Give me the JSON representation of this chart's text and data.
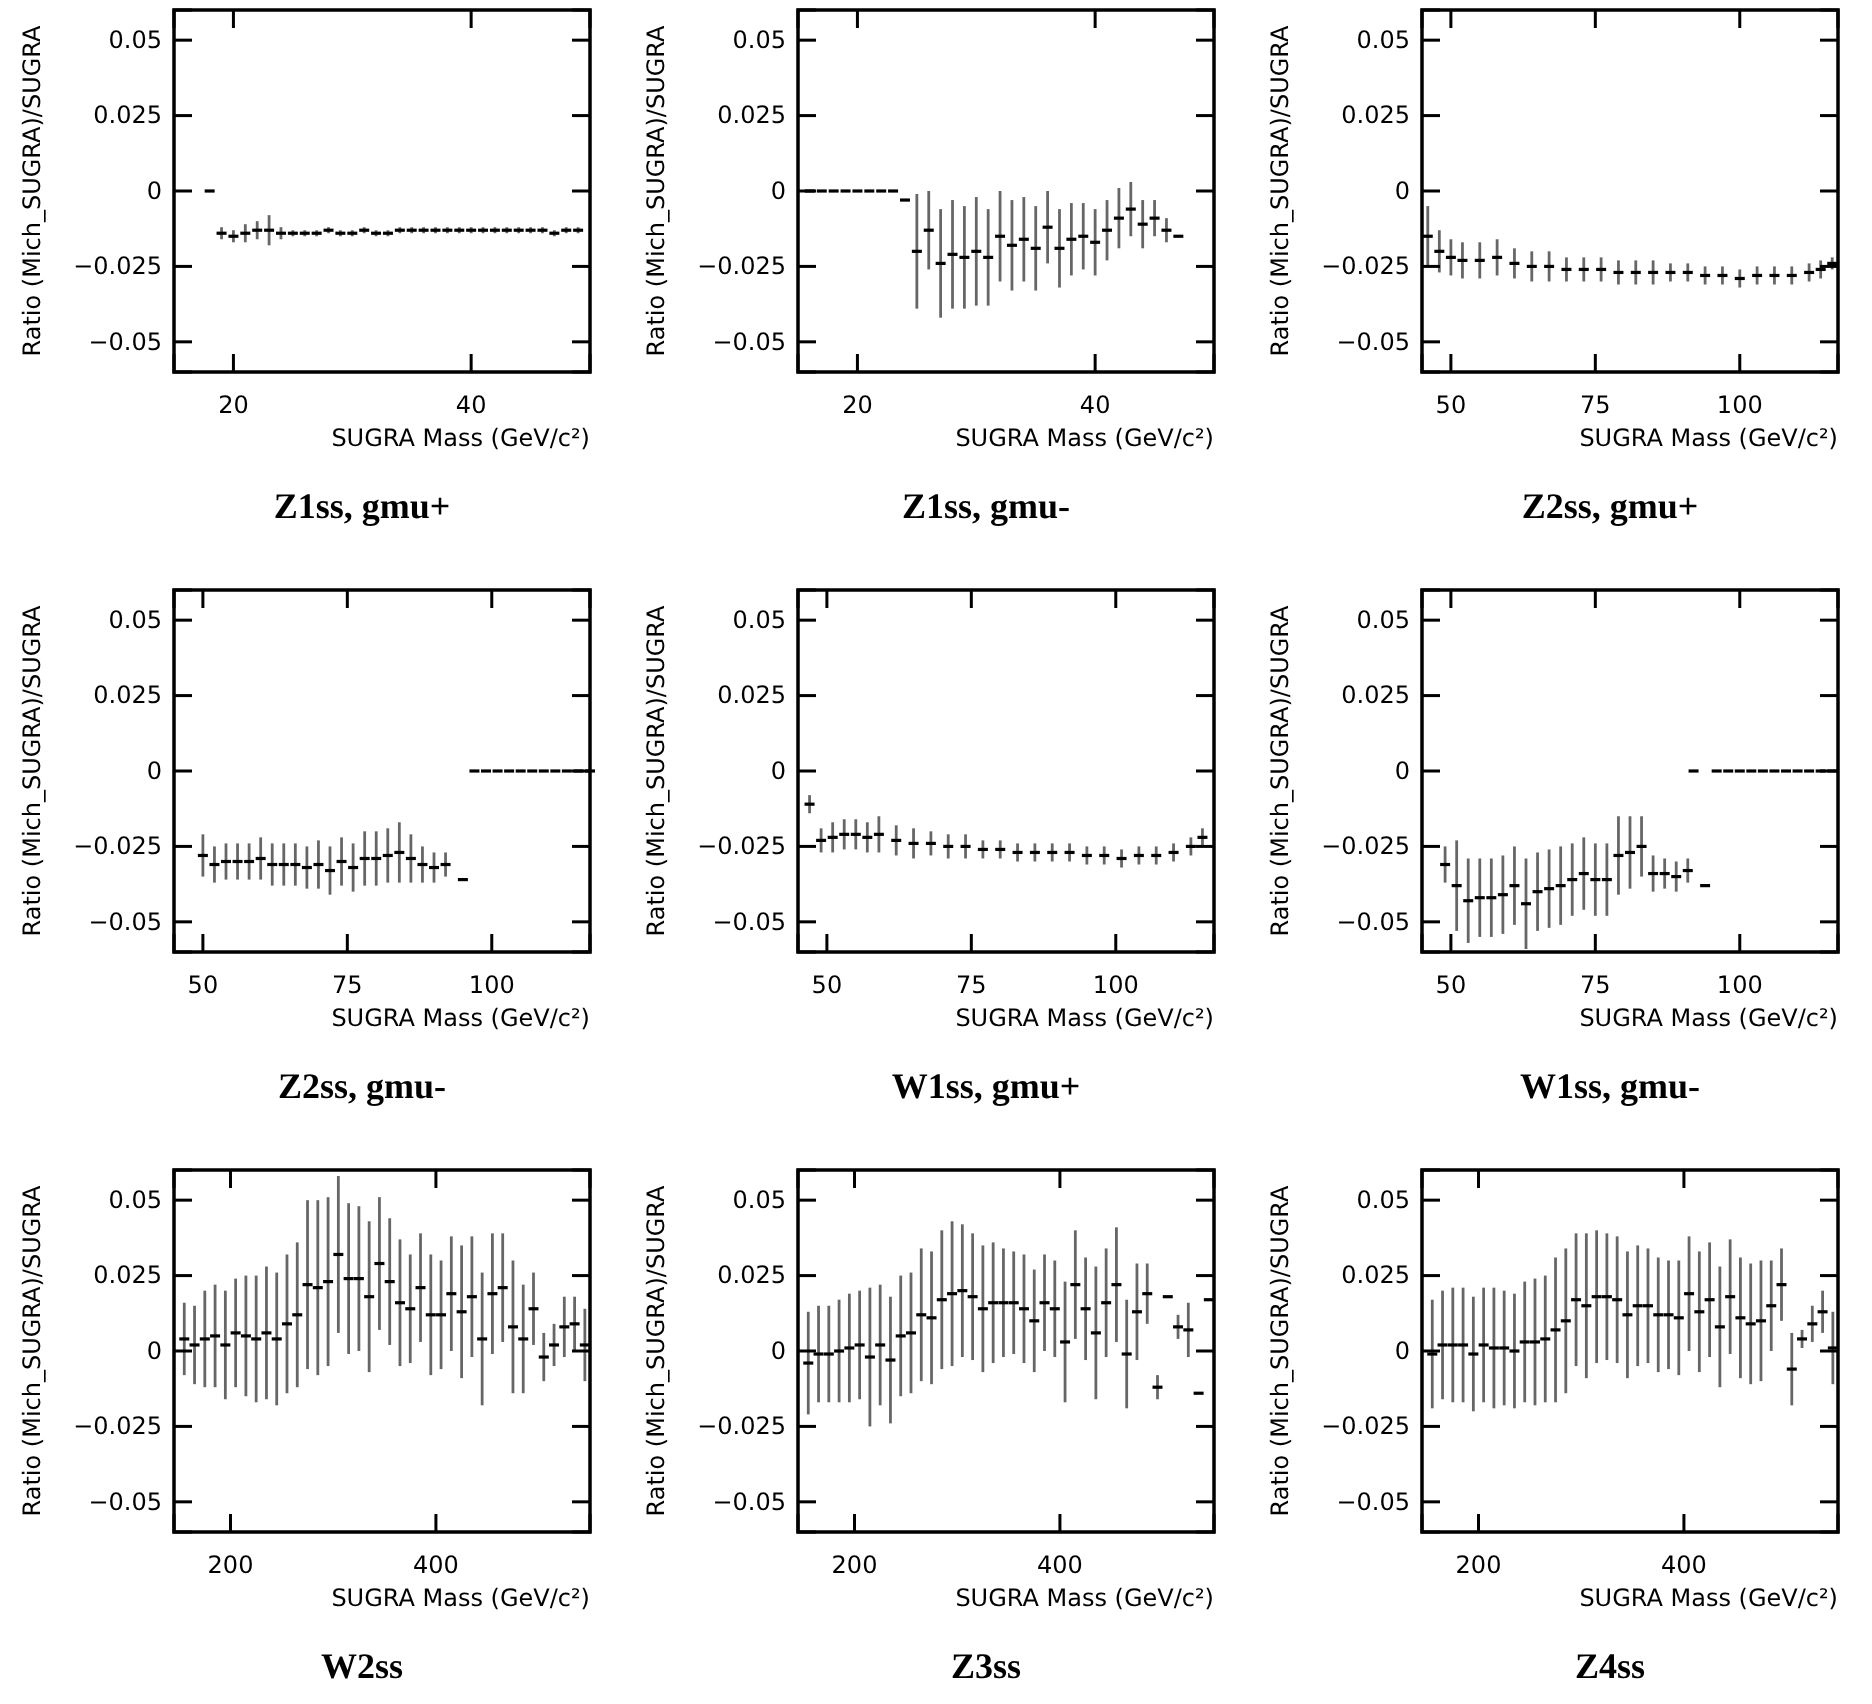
{
  "chart_data": [
    {
      "type": "scatter",
      "title": "Z1ss, gmu+",
      "xlabel": "SUGRA Mass (GeV/c²)",
      "ylabel": "Ratio (Mich_SUGRA)/SUGRA",
      "xlim": [
        15,
        50
      ],
      "xticks": [
        20,
        40
      ],
      "ylim": [
        -0.06,
        0.06
      ],
      "yticks": [
        -0.05,
        -0.025,
        0,
        0.025,
        0.05
      ],
      "series": [
        {
          "color": "#000000",
          "x": [
            18,
            19,
            20,
            21,
            22,
            23,
            24,
            25,
            26,
            27,
            28,
            29,
            30,
            31,
            32,
            33,
            34,
            35,
            36,
            37,
            38,
            39,
            40,
            41,
            42,
            43,
            44,
            45,
            46,
            47,
            48,
            49
          ],
          "values": [
            0,
            -0.014,
            -0.015,
            -0.014,
            -0.013,
            -0.013,
            -0.014,
            -0.014,
            -0.014,
            -0.014,
            -0.013,
            -0.014,
            -0.014,
            -0.013,
            -0.014,
            -0.014,
            -0.013,
            -0.013,
            -0.013,
            -0.013,
            -0.013,
            -0.013,
            -0.013,
            -0.013,
            -0.013,
            -0.013,
            -0.013,
            -0.013,
            -0.013,
            -0.014,
            -0.013,
            -0.013
          ],
          "errors": [
            null,
            0.002,
            0.002,
            0.003,
            0.003,
            0.005,
            0.002,
            0.001,
            0.001,
            0.001,
            0.001,
            0.001,
            0.001,
            0.001,
            0.001,
            0.001,
            0.001,
            0.001,
            0.001,
            0.001,
            0.001,
            0.001,
            0.001,
            0.001,
            0.001,
            0.001,
            0.001,
            0.001,
            0.001,
            0.001,
            0.001,
            0.001
          ]
        }
      ]
    },
    {
      "type": "scatter",
      "title": "Z1ss, gmu-",
      "xlabel": "SUGRA Mass (GeV/c²)",
      "ylabel": "Ratio (Mich_SUGRA)/SUGRA",
      "xlim": [
        15,
        50
      ],
      "xticks": [
        20,
        40
      ],
      "ylim": [
        -0.06,
        0.06
      ],
      "yticks": [
        -0.05,
        -0.025,
        0,
        0.025,
        0.05
      ],
      "series": [
        {
          "color": "#000000",
          "x": [
            16,
            17,
            18,
            19,
            20,
            21,
            22,
            23,
            24,
            25,
            26,
            27,
            28,
            29,
            30,
            31,
            32,
            33,
            34,
            35,
            36,
            37,
            38,
            39,
            40,
            41,
            42,
            43,
            44,
            45,
            46,
            47
          ],
          "values": [
            0,
            0,
            0,
            0,
            0,
            0,
            0,
            0,
            -0.003,
            -0.02,
            -0.013,
            -0.024,
            -0.021,
            -0.022,
            -0.02,
            -0.022,
            -0.015,
            -0.018,
            -0.016,
            -0.019,
            -0.012,
            -0.019,
            -0.016,
            -0.015,
            -0.017,
            -0.013,
            -0.009,
            -0.006,
            -0.011,
            -0.009,
            -0.013,
            -0.015
          ],
          "errors": [
            null,
            null,
            null,
            null,
            null,
            null,
            null,
            null,
            null,
            0.019,
            0.013,
            0.018,
            0.018,
            0.017,
            0.018,
            0.016,
            0.015,
            0.015,
            0.014,
            0.014,
            0.012,
            0.013,
            0.012,
            0.011,
            0.011,
            0.01,
            0.01,
            0.009,
            0.008,
            0.006,
            0.004,
            null
          ]
        }
      ]
    },
    {
      "type": "scatter",
      "title": "Z2ss, gmu+",
      "xlabel": "SUGRA Mass (GeV/c²)",
      "ylabel": "Ratio (Mich_SUGRA)/SUGRA",
      "xlim": [
        45,
        117
      ],
      "xticks": [
        50,
        75,
        100
      ],
      "ylim": [
        -0.06,
        0.06
      ],
      "yticks": [
        -0.05,
        -0.025,
        0,
        0.025,
        0.05
      ],
      "series": [
        {
          "color": "#000000",
          "x": [
            46,
            48,
            50,
            52,
            55,
            58,
            61,
            64,
            67,
            70,
            73,
            76,
            79,
            82,
            85,
            88,
            91,
            94,
            97,
            100,
            103,
            106,
            109,
            112,
            114,
            116
          ],
          "values": [
            -0.015,
            -0.02,
            -0.022,
            -0.023,
            -0.023,
            -0.022,
            -0.024,
            -0.025,
            -0.025,
            -0.026,
            -0.026,
            -0.026,
            -0.027,
            -0.027,
            -0.027,
            -0.027,
            -0.027,
            -0.028,
            -0.028,
            -0.029,
            -0.028,
            -0.028,
            -0.028,
            -0.027,
            -0.026,
            -0.024
          ],
          "errors": [
            0.01,
            0.007,
            0.006,
            0.006,
            0.006,
            0.006,
            0.005,
            0.005,
            0.005,
            0.004,
            0.004,
            0.004,
            0.004,
            0.004,
            0.004,
            0.003,
            0.003,
            0.003,
            0.003,
            0.003,
            0.003,
            0.003,
            0.003,
            0.003,
            0.003,
            0.002
          ]
        }
      ]
    },
    {
      "type": "scatter",
      "title": "Z2ss, gmu-",
      "xlabel": "SUGRA Mass (GeV/c²)",
      "ylabel": "Ratio (Mich_SUGRA)/SUGRA",
      "xlim": [
        45,
        117
      ],
      "xticks": [
        50,
        75,
        100
      ],
      "ylim": [
        -0.06,
        0.06
      ],
      "yticks": [
        -0.05,
        -0.025,
        0,
        0.025,
        0.05
      ],
      "series": [
        {
          "color": "#000000",
          "x": [
            50,
            52,
            54,
            56,
            58,
            60,
            62,
            64,
            66,
            68,
            70,
            72,
            74,
            76,
            78,
            80,
            82,
            84,
            86,
            88,
            90,
            92,
            95,
            97,
            99,
            101,
            103,
            105,
            107,
            109,
            111,
            113,
            115,
            117
          ],
          "values": [
            -0.028,
            -0.031,
            -0.03,
            -0.03,
            -0.03,
            -0.029,
            -0.031,
            -0.031,
            -0.031,
            -0.032,
            -0.031,
            -0.033,
            -0.03,
            -0.032,
            -0.029,
            -0.029,
            -0.028,
            -0.027,
            -0.029,
            -0.031,
            -0.032,
            -0.031,
            -0.036,
            0,
            0,
            0,
            0,
            0,
            0,
            0,
            0,
            0,
            0,
            0
          ],
          "errors": [
            0.007,
            0.006,
            0.006,
            0.006,
            0.006,
            0.007,
            0.007,
            0.007,
            0.007,
            0.007,
            0.008,
            0.008,
            0.008,
            0.008,
            0.009,
            0.009,
            0.009,
            0.01,
            0.008,
            0.006,
            0.005,
            0.004,
            null,
            null,
            null,
            null,
            null,
            null,
            null,
            null,
            null,
            null,
            null,
            null
          ]
        }
      ]
    },
    {
      "type": "scatter",
      "title": "W1ss, gmu+",
      "xlabel": "SUGRA Mass (GeV/c²)",
      "ylabel": "Ratio (Mich_SUGRA)/SUGRA",
      "xlim": [
        45,
        117
      ],
      "xticks": [
        50,
        75,
        100
      ],
      "ylim": [
        -0.06,
        0.06
      ],
      "yticks": [
        -0.05,
        -0.025,
        0,
        0.025,
        0.05
      ],
      "series": [
        {
          "color": "#000000",
          "x": [
            47,
            49,
            51,
            53,
            55,
            57,
            59,
            62,
            65,
            68,
            71,
            74,
            77,
            80,
            83,
            86,
            89,
            92,
            95,
            98,
            101,
            104,
            107,
            110,
            113,
            115
          ],
          "values": [
            -0.011,
            -0.023,
            -0.022,
            -0.021,
            -0.021,
            -0.022,
            -0.021,
            -0.023,
            -0.024,
            -0.024,
            -0.025,
            -0.025,
            -0.026,
            -0.026,
            -0.027,
            -0.027,
            -0.027,
            -0.027,
            -0.028,
            -0.028,
            -0.029,
            -0.028,
            -0.028,
            -0.027,
            -0.025,
            -0.022
          ],
          "errors": [
            0.003,
            0.004,
            0.005,
            0.005,
            0.005,
            0.005,
            0.006,
            0.005,
            0.005,
            0.004,
            0.004,
            0.004,
            0.003,
            0.003,
            0.003,
            0.003,
            0.003,
            0.003,
            0.003,
            0.003,
            0.003,
            0.003,
            0.003,
            0.003,
            0.003,
            0.003
          ]
        }
      ]
    },
    {
      "type": "scatter",
      "title": "W1ss, gmu-",
      "xlabel": "SUGRA Mass (GeV/c²)",
      "ylabel": "Ratio (Mich_SUGRA)/SUGRA",
      "xlim": [
        45,
        117
      ],
      "xticks": [
        50,
        75,
        100
      ],
      "ylim": [
        -0.06,
        0.06
      ],
      "yticks": [
        -0.05,
        -0.025,
        0,
        0.025,
        0.05
      ],
      "series": [
        {
          "color": "#000000",
          "x": [
            49,
            51,
            53,
            55,
            57,
            59,
            61,
            63,
            65,
            67,
            69,
            71,
            73,
            75,
            77,
            79,
            81,
            83,
            85,
            87,
            89,
            91,
            92,
            94,
            96,
            98,
            100,
            102,
            104,
            106,
            108,
            110,
            112,
            114,
            116
          ],
          "values": [
            -0.031,
            -0.038,
            -0.043,
            -0.042,
            -0.042,
            -0.041,
            -0.038,
            -0.044,
            -0.04,
            -0.039,
            -0.038,
            -0.036,
            -0.034,
            -0.036,
            -0.036,
            -0.028,
            -0.027,
            -0.025,
            -0.034,
            -0.034,
            -0.035,
            -0.033,
            0,
            -0.038,
            0,
            0,
            0,
            0,
            0,
            0,
            0,
            0,
            0,
            0,
            0
          ],
          "errors": [
            0.006,
            0.015,
            0.014,
            0.013,
            0.013,
            0.013,
            0.013,
            0.015,
            0.013,
            0.013,
            0.013,
            0.012,
            0.012,
            0.012,
            0.012,
            0.013,
            0.012,
            0.01,
            0.006,
            0.005,
            0.005,
            0.004,
            null,
            null,
            null,
            null,
            null,
            null,
            null,
            null,
            null,
            null,
            null,
            null,
            null
          ]
        }
      ]
    },
    {
      "type": "scatter",
      "title": "W2ss",
      "xlabel": "SUGRA Mass (GeV/c²)",
      "ylabel": "Ratio (Mich_SUGRA)/SUGRA",
      "xlim": [
        145,
        550
      ],
      "xticks": [
        200,
        400
      ],
      "ylim": [
        -0.06,
        0.06
      ],
      "yticks": [
        -0.05,
        -0.025,
        0,
        0.025,
        0.05
      ],
      "series": [
        {
          "color": "#000000",
          "x": [
            155,
            165,
            175,
            185,
            195,
            205,
            215,
            225,
            235,
            245,
            255,
            265,
            275,
            285,
            295,
            305,
            315,
            325,
            335,
            345,
            355,
            365,
            375,
            385,
            395,
            405,
            415,
            425,
            435,
            445,
            455,
            465,
            475,
            485,
            495,
            505,
            515,
            525,
            535,
            545
          ],
          "values": [
            0.004,
            0.002,
            0.004,
            0.005,
            0.002,
            0.006,
            0.005,
            0.004,
            0.006,
            0.004,
            0.009,
            0.012,
            0.022,
            0.021,
            0.023,
            0.032,
            0.024,
            0.024,
            0.018,
            0.029,
            0.023,
            0.016,
            0.014,
            0.021,
            0.012,
            0.012,
            0.019,
            0.013,
            0.018,
            0.004,
            0.019,
            0.021,
            0.008,
            0.004,
            0.014,
            -0.002,
            0.002,
            0.008,
            0.009,
            0.002
          ],
          "errors": [
            0.012,
            0.013,
            0.016,
            0.017,
            0.018,
            0.018,
            0.02,
            0.021,
            0.022,
            0.022,
            0.023,
            0.024,
            0.028,
            0.029,
            0.028,
            0.026,
            0.025,
            0.024,
            0.025,
            0.022,
            0.021,
            0.021,
            0.018,
            0.018,
            0.02,
            0.018,
            0.019,
            0.022,
            0.02,
            0.022,
            0.02,
            0.018,
            0.022,
            0.018,
            0.012,
            0.008,
            0.007,
            0.01,
            0.009,
            0.012
          ]
        }
      ]
    },
    {
      "type": "scatter",
      "title": "Z3ss",
      "xlabel": "SUGRA Mass (GeV/c²)",
      "ylabel": "Ratio (Mich_SUGRA)/SUGRA",
      "xlim": [
        145,
        550
      ],
      "xticks": [
        200,
        400
      ],
      "ylim": [
        -0.06,
        0.06
      ],
      "yticks": [
        -0.05,
        -0.025,
        0,
        0.025,
        0.05
      ],
      "series": [
        {
          "color": "#000000",
          "x": [
            155,
            165,
            175,
            185,
            195,
            205,
            215,
            225,
            235,
            245,
            255,
            265,
            275,
            285,
            295,
            305,
            315,
            325,
            335,
            345,
            355,
            365,
            375,
            385,
            395,
            405,
            415,
            425,
            435,
            445,
            455,
            465,
            475,
            485,
            495,
            505,
            515,
            525,
            535,
            545
          ],
          "values": [
            -0.004,
            -0.001,
            -0.001,
            0,
            0.001,
            0.002,
            -0.002,
            0.002,
            -0.003,
            0.005,
            0.006,
            0.012,
            0.011,
            0.017,
            0.019,
            0.02,
            0.018,
            0.014,
            0.016,
            0.016,
            0.016,
            0.014,
            0.01,
            0.016,
            0.014,
            0.003,
            0.022,
            0.014,
            0.006,
            0.016,
            0.022,
            -0.001,
            0.013,
            0.019,
            -0.012,
            0.018,
            0.008,
            0.007,
            -0.014,
            0.017
          ],
          "errors": [
            0.017,
            0.016,
            0.016,
            0.017,
            0.018,
            0.018,
            0.023,
            0.02,
            0.021,
            0.02,
            0.02,
            0.022,
            0.022,
            0.023,
            0.024,
            0.022,
            0.021,
            0.021,
            0.02,
            0.018,
            0.017,
            0.018,
            0.017,
            0.016,
            0.016,
            0.02,
            0.018,
            0.017,
            0.022,
            0.018,
            0.019,
            0.018,
            0.016,
            0.01,
            0.004,
            null,
            0.004,
            0.009,
            null,
            null
          ]
        }
      ]
    },
    {
      "type": "scatter",
      "title": "Z4ss",
      "xlabel": "SUGRA Mass (GeV/c²)",
      "ylabel": "Ratio (Mich_SUGRA)/SUGRA",
      "xlim": [
        145,
        550
      ],
      "xticks": [
        200,
        400
      ],
      "ylim": [
        -0.06,
        0.06
      ],
      "yticks": [
        -0.05,
        -0.025,
        0,
        0.025,
        0.05
      ],
      "series": [
        {
          "color": "#000000",
          "x": [
            155,
            165,
            175,
            185,
            195,
            205,
            215,
            225,
            235,
            245,
            255,
            265,
            275,
            285,
            295,
            305,
            315,
            325,
            335,
            345,
            355,
            365,
            375,
            385,
            395,
            405,
            415,
            425,
            435,
            445,
            455,
            465,
            475,
            485,
            495,
            505,
            515,
            525,
            535,
            545
          ],
          "values": [
            -0.001,
            0.002,
            0.002,
            0.002,
            -0.001,
            0.002,
            0.001,
            0.001,
            0,
            0.003,
            0.003,
            0.004,
            0.007,
            0.01,
            0.017,
            0.015,
            0.018,
            0.018,
            0.017,
            0.012,
            0.015,
            0.015,
            0.012,
            0.012,
            0.011,
            0.019,
            0.013,
            0.017,
            0.008,
            0.018,
            0.011,
            0.009,
            0.01,
            0.015,
            0.022,
            -0.006,
            0.004,
            0.009,
            0.013,
            0.001
          ],
          "errors": [
            0.018,
            0.018,
            0.019,
            0.019,
            0.019,
            0.019,
            0.02,
            0.019,
            0.019,
            0.02,
            0.021,
            0.021,
            0.024,
            0.024,
            0.022,
            0.024,
            0.022,
            0.021,
            0.021,
            0.021,
            0.02,
            0.019,
            0.019,
            0.018,
            0.019,
            0.019,
            0.02,
            0.019,
            0.02,
            0.019,
            0.02,
            0.02,
            0.02,
            0.015,
            0.012,
            0.012,
            0.003,
            0.006,
            0.007,
            0.012
          ]
        }
      ]
    }
  ]
}
